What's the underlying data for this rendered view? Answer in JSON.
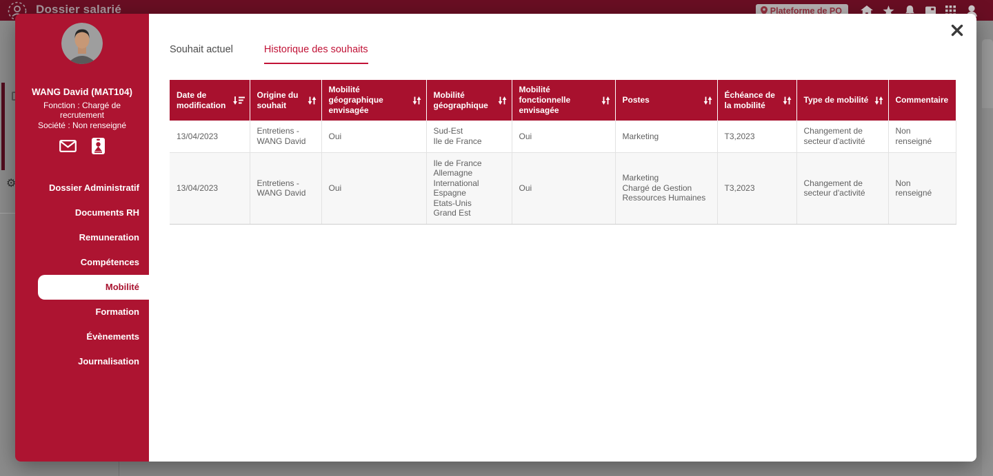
{
  "colors": {
    "accent": "#a8112e",
    "sidebar": "#ad1431",
    "topbar": "#6a0e23"
  },
  "topbar": {
    "title": "Dossier salarié",
    "platform_badge": "Plateforme de PO",
    "icons": [
      "home-icon",
      "star-icon",
      "bell-icon",
      "panel-icon",
      "app-grid-icon",
      "account-icon"
    ]
  },
  "modal": {
    "sidebar": {
      "name": "WANG David (MAT104)",
      "function": "Fonction : Chargé de recrutement",
      "company": "Société : Non renseigné",
      "contact_icons": [
        "mail-icon",
        "id-badge-icon"
      ],
      "nav": [
        {
          "label": "Dossier Administratif",
          "active": false
        },
        {
          "label": "Documents RH",
          "active": false
        },
        {
          "label": "Remuneration",
          "active": false
        },
        {
          "label": "Compétences",
          "active": false
        },
        {
          "label": "Mobilité",
          "active": true
        },
        {
          "label": "Formation",
          "active": false
        },
        {
          "label": "Évènements",
          "active": false
        },
        {
          "label": "Journalisation",
          "active": false
        }
      ]
    },
    "tabs": [
      {
        "label": "Souhait actuel",
        "active": false
      },
      {
        "label": "Historique des souhaits",
        "active": true
      }
    ],
    "table": {
      "columns": [
        {
          "label": "Date de modification",
          "sort": "amount-desc"
        },
        {
          "label": "Origine du souhait",
          "sort": "both"
        },
        {
          "label": "Mobilité géographique envisagée",
          "sort": "both"
        },
        {
          "label": "Mobilité géographique",
          "sort": "both"
        },
        {
          "label": "Mobilité fonctionnelle envisagée",
          "sort": "both"
        },
        {
          "label": "Postes",
          "sort": "both"
        },
        {
          "label": "Échéance de la mobilité",
          "sort": "both"
        },
        {
          "label": "Type de mobilité",
          "sort": "both"
        },
        {
          "label": "Commentaire",
          "sort": null
        }
      ],
      "rows": [
        {
          "cells": [
            [
              "13/04/2023"
            ],
            [
              "Entretiens - WANG David"
            ],
            [
              "Oui"
            ],
            [
              "Sud-Est",
              "Ile de France"
            ],
            [
              "Oui"
            ],
            [
              "Marketing"
            ],
            [
              "T3,2023"
            ],
            [
              "Changement de secteur d'activité"
            ],
            [
              "Non renseigné"
            ]
          ]
        },
        {
          "cells": [
            [
              "13/04/2023"
            ],
            [
              "Entretiens - WANG David"
            ],
            [
              "Oui"
            ],
            [
              "Ile de France",
              "Allemagne",
              "International",
              "Espagne",
              "Etats-Unis",
              "Grand Est"
            ],
            [
              "Oui"
            ],
            [
              "Marketing",
              "Chargé de Gestion",
              "Ressources Humaines"
            ],
            [
              "T3,2023"
            ],
            [
              "Changement de secteur d'activité"
            ],
            [
              "Non renseigné"
            ]
          ]
        }
      ]
    }
  }
}
